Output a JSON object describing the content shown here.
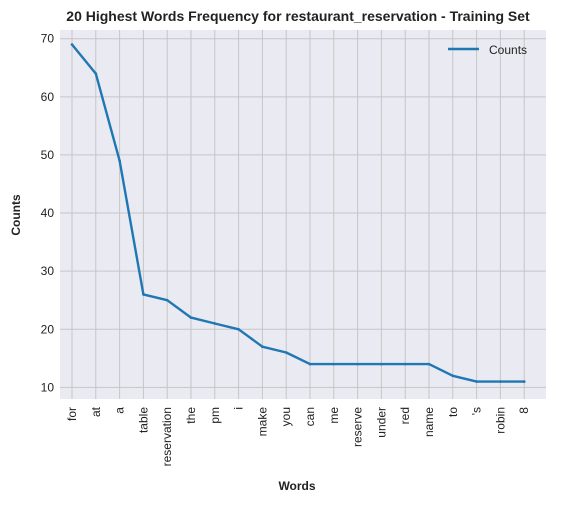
{
  "chart_data": {
    "type": "line",
    "title": "20 Highest Words Frequency for restaurant_reservation - Training Set",
    "xlabel": "Words",
    "ylabel": "Counts",
    "categories": [
      "for",
      "at",
      "a",
      "table",
      "reservation",
      "the",
      "pm",
      "i",
      "make",
      "you",
      "can",
      "me",
      "reserve",
      "under",
      "red",
      "name",
      "to",
      "'s",
      "robin",
      "8"
    ],
    "series": [
      {
        "name": "Counts",
        "color": "#1f77b4",
        "values": [
          69,
          64,
          49,
          26,
          25,
          22,
          21,
          20,
          17,
          16,
          14,
          14,
          14,
          14,
          14,
          14,
          12,
          11,
          11,
          11
        ]
      }
    ],
    "ylim": [
      8,
      71.5
    ],
    "yticks": [
      10,
      20,
      30,
      40,
      50,
      60,
      70
    ],
    "grid": true,
    "legend": {
      "position": "top-right",
      "label": "Counts"
    },
    "colors": {
      "plot_bg": "#eaeaf2",
      "grid": "#c6c6c6",
      "line": "#1f77b4"
    }
  }
}
